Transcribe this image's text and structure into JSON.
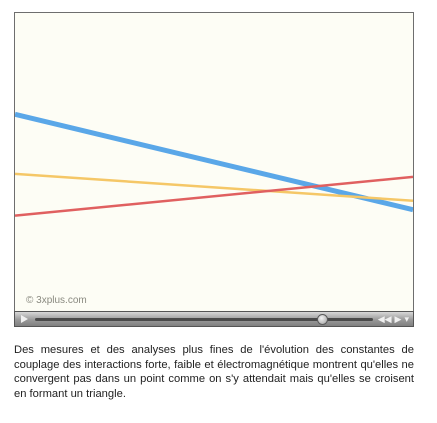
{
  "video": {
    "credit": "© 3xplus.com",
    "progress": 0.85,
    "lines": [
      {
        "color": "#5aa7e8",
        "from": [
          0.0,
          0.66
        ],
        "to": [
          1.0,
          0.34
        ]
      },
      {
        "color": "#f5c767",
        "from": [
          0.0,
          0.46
        ],
        "to": [
          1.0,
          0.37
        ]
      },
      {
        "color": "#e06060",
        "from": [
          0.0,
          0.32
        ],
        "to": [
          1.0,
          0.45
        ]
      }
    ]
  },
  "controls": {
    "play_icon": "play-icon",
    "rewind_icon": "rewind-icon",
    "forward_icon": "fast-forward-icon",
    "volume_icon": "volume-icon"
  },
  "caption": "Des mesures et des analyses plus fines de l'évolution des constantes de couplage des interactions forte, faible et électromagnétique montrent qu'elles ne convergent pas dans un point comme on s'y attendait mais qu'elles se croisent en formant un triangle."
}
